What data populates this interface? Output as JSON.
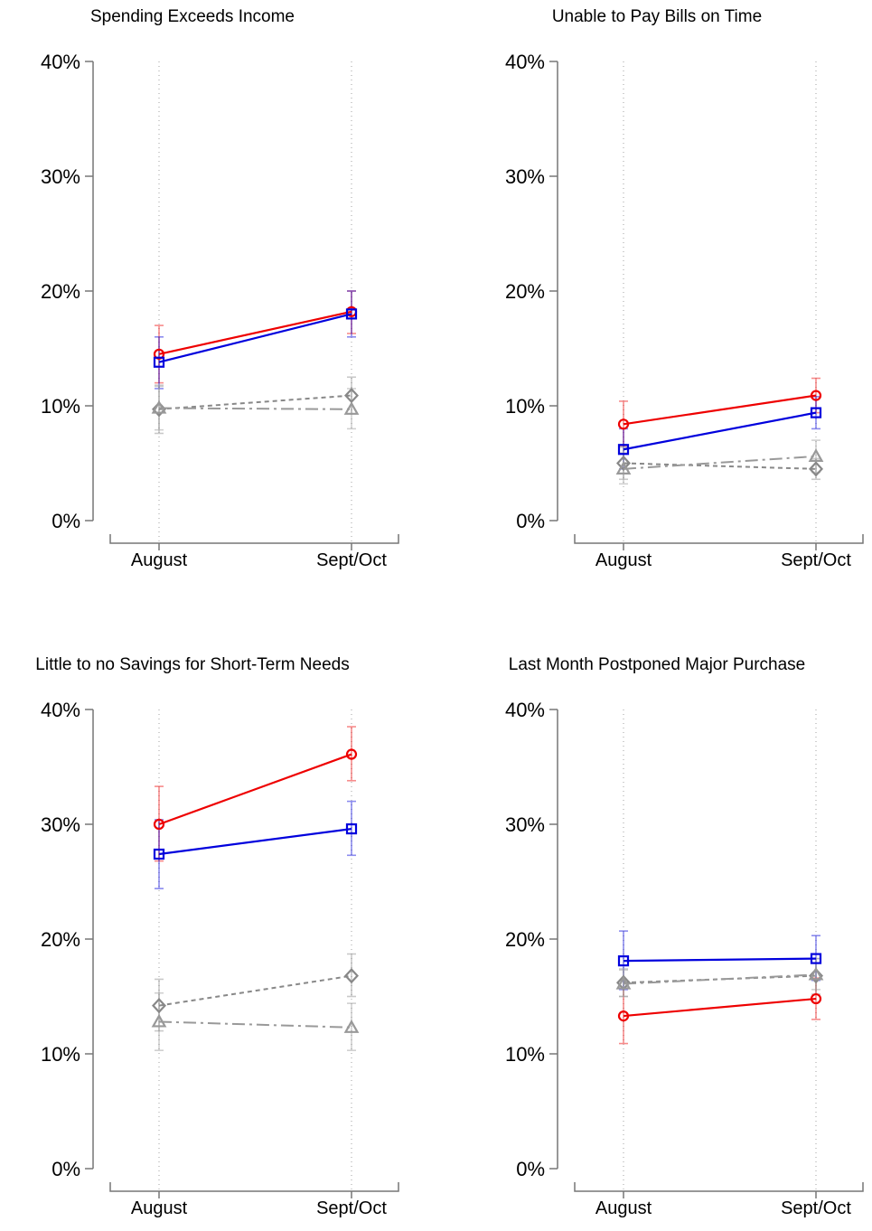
{
  "chart_data": [
    {
      "type": "line",
      "title": "Spending Exceeds Income",
      "categories": [
        "August",
        "Sept/Oct"
      ],
      "ylim": [
        0,
        40
      ],
      "yticks": [
        "0%",
        "10%",
        "20%",
        "30%",
        "40%"
      ],
      "series": [
        {
          "color": "#ee0000",
          "marker": "circle",
          "line": "solid",
          "values": [
            14.5,
            18.2
          ],
          "lower": [
            12.0,
            16.3
          ],
          "upper": [
            17.0,
            20.0
          ]
        },
        {
          "color": "#0000dd",
          "marker": "square",
          "line": "solid",
          "values": [
            13.8,
            18.0
          ],
          "lower": [
            11.5,
            16.0
          ],
          "upper": [
            16.0,
            20.0
          ]
        },
        {
          "color": "#888888",
          "marker": "diamond",
          "line": "dashed",
          "values": [
            9.7,
            10.9
          ],
          "lower": [
            7.6,
            9.3
          ],
          "upper": [
            11.7,
            12.5
          ]
        },
        {
          "color": "#999999",
          "marker": "triangle",
          "line": "dashdot",
          "values": [
            9.8,
            9.7
          ],
          "lower": [
            7.9,
            8.0
          ],
          "upper": [
            11.8,
            11.5
          ]
        }
      ]
    },
    {
      "type": "line",
      "title": "Unable to Pay Bills on Time",
      "categories": [
        "August",
        "Sept/Oct"
      ],
      "ylim": [
        0,
        40
      ],
      "yticks": [
        "0%",
        "10%",
        "20%",
        "30%",
        "40%"
      ],
      "series": [
        {
          "color": "#ee0000",
          "marker": "circle",
          "line": "solid",
          "values": [
            8.4,
            10.9
          ],
          "lower": [
            6.5,
            9.4
          ],
          "upper": [
            10.4,
            12.4
          ]
        },
        {
          "color": "#0000dd",
          "marker": "square",
          "line": "solid",
          "values": [
            6.2,
            9.4
          ],
          "lower": [
            4.5,
            8.0
          ],
          "upper": [
            8.0,
            10.8
          ]
        },
        {
          "color": "#888888",
          "marker": "diamond",
          "line": "dashed",
          "values": [
            5.0,
            4.5
          ],
          "lower": [
            3.6,
            3.6
          ],
          "upper": [
            6.4,
            5.4
          ]
        },
        {
          "color": "#999999",
          "marker": "triangle",
          "line": "dashdot",
          "values": [
            4.5,
            5.6
          ],
          "lower": [
            3.2,
            4.2
          ],
          "upper": [
            5.9,
            7.0
          ]
        }
      ]
    },
    {
      "type": "line",
      "title": "Little to no Savings for Short-Term Needs",
      "categories": [
        "August",
        "Sept/Oct"
      ],
      "ylim": [
        0,
        40
      ],
      "yticks": [
        "0%",
        "10%",
        "20%",
        "30%",
        "40%"
      ],
      "series": [
        {
          "color": "#ee0000",
          "marker": "circle",
          "line": "solid",
          "values": [
            30.0,
            36.1
          ],
          "lower": [
            26.8,
            33.8
          ],
          "upper": [
            33.3,
            38.5
          ]
        },
        {
          "color": "#0000dd",
          "marker": "square",
          "line": "solid",
          "values": [
            27.4,
            29.6
          ],
          "lower": [
            24.4,
            27.3
          ],
          "upper": [
            30.4,
            32.0
          ]
        },
        {
          "color": "#888888",
          "marker": "diamond",
          "line": "dashed",
          "values": [
            14.2,
            16.8
          ],
          "lower": [
            12.0,
            15.0
          ],
          "upper": [
            16.5,
            18.7
          ]
        },
        {
          "color": "#999999",
          "marker": "triangle",
          "line": "dashdot",
          "values": [
            12.8,
            12.3
          ],
          "lower": [
            10.3,
            10.3
          ],
          "upper": [
            15.3,
            14.4
          ]
        }
      ]
    },
    {
      "type": "line",
      "title": "Last Month Postponed Major Purchase",
      "categories": [
        "August",
        "Sept/Oct"
      ],
      "ylim": [
        0,
        40
      ],
      "yticks": [
        "0%",
        "10%",
        "20%",
        "30%",
        "40%"
      ],
      "series": [
        {
          "color": "#ee0000",
          "marker": "circle",
          "line": "solid",
          "values": [
            13.3,
            14.8
          ],
          "lower": [
            10.9,
            13.0
          ],
          "upper": [
            15.7,
            16.6
          ]
        },
        {
          "color": "#0000dd",
          "marker": "square",
          "line": "solid",
          "values": [
            18.1,
            18.3
          ],
          "lower": [
            15.6,
            16.4
          ],
          "upper": [
            20.7,
            20.3
          ]
        },
        {
          "color": "#888888",
          "marker": "diamond",
          "line": "dashed",
          "values": [
            16.2,
            16.8
          ],
          "lower": [
            15.0,
            15.2
          ],
          "upper": [
            17.4,
            18.3
          ]
        },
        {
          "color": "#999999",
          "marker": "triangle",
          "line": "dashdot",
          "values": [
            16.1,
            16.9
          ],
          "lower": [
            15.0,
            15.6
          ],
          "upper": [
            17.3,
            18.3
          ]
        }
      ]
    }
  ]
}
